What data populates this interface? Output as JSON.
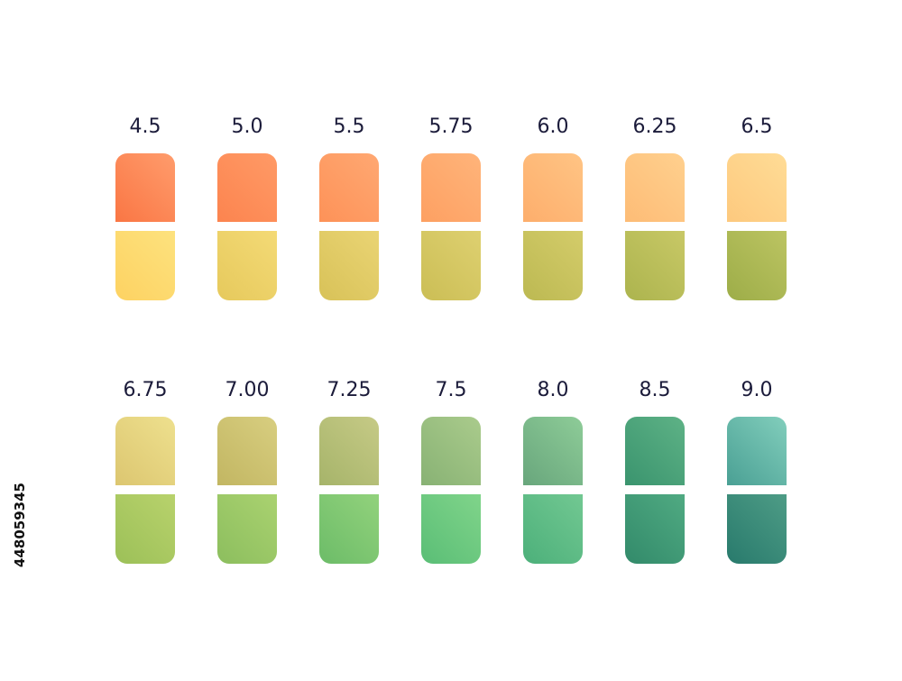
{
  "stock_id": "448059345",
  "swatches": [
    {
      "label": "4.5",
      "top": [
        "#ff9c6c",
        "#fa7644"
      ],
      "bottom": [
        "#fde27e",
        "#fdd262"
      ]
    },
    {
      "label": "5.0",
      "top": [
        "#ff9a66",
        "#fc844f"
      ],
      "bottom": [
        "#f4da76",
        "#e6c95c"
      ]
    },
    {
      "label": "5.5",
      "top": [
        "#ffa872",
        "#fd9258"
      ],
      "bottom": [
        "#ead474",
        "#d8c258"
      ]
    },
    {
      "label": "5.75",
      "top": [
        "#ffb47a",
        "#fda062"
      ],
      "bottom": [
        "#ded070",
        "#cbbe55"
      ]
    },
    {
      "label": "6.0",
      "top": [
        "#ffc484",
        "#fdae6c"
      ],
      "bottom": [
        "#d4cc6a",
        "#bcb952"
      ]
    },
    {
      "label": "6.25",
      "top": [
        "#ffd08e",
        "#fdbc76"
      ],
      "bottom": [
        "#c8c866",
        "#acb44e"
      ]
    },
    {
      "label": "6.5",
      "top": [
        "#ffdc96",
        "#fdc97e"
      ],
      "bottom": [
        "#bcc462",
        "#9dad48"
      ]
    },
    {
      "label": "6.75",
      "top": [
        "#eee08e",
        "#dcc670"
      ],
      "bottom": [
        "#b8d26c",
        "#9cc058"
      ]
    },
    {
      "label": "7.00",
      "top": [
        "#d8ce80",
        "#c2b662"
      ],
      "bottom": [
        "#aad270",
        "#8cbe5e"
      ]
    },
    {
      "label": "7.25",
      "top": [
        "#c6ca86",
        "#a6b46a"
      ],
      "bottom": [
        "#92d27c",
        "#6cbc68"
      ]
    },
    {
      "label": "7.5",
      "top": [
        "#aacb8c",
        "#88b274"
      ],
      "bottom": [
        "#80d48a",
        "#5abe76"
      ]
    },
    {
      "label": "8.0",
      "top": [
        "#8ecc98",
        "#68a67c"
      ],
      "bottom": [
        "#72c892",
        "#4cb07a"
      ]
    },
    {
      "label": "8.5",
      "top": [
        "#5eb286",
        "#3a946e"
      ],
      "bottom": [
        "#50aa82",
        "#328a6a"
      ]
    },
    {
      "label": "9.0",
      "top": [
        "#82cebc",
        "#4aa094"
      ],
      "bottom": [
        "#4e9c86",
        "#287a6c"
      ]
    }
  ]
}
